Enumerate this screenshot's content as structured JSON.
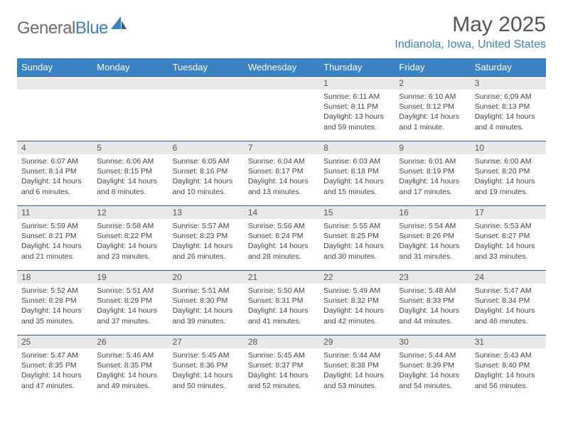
{
  "brand": {
    "part1": "General",
    "part2": "Blue"
  },
  "title": "May 2025",
  "location": "Indianola, Iowa, United States",
  "colors": {
    "accent": "#3b82c4",
    "header_text": "#ffffff",
    "daynum_bg": "#e8e8e8",
    "border": "#2f5f8f",
    "body_text": "#444444",
    "title_text": "#555555"
  },
  "dow": [
    "Sunday",
    "Monday",
    "Tuesday",
    "Wednesday",
    "Thursday",
    "Friday",
    "Saturday"
  ],
  "weeks": [
    [
      {
        "n": "",
        "lines": []
      },
      {
        "n": "",
        "lines": []
      },
      {
        "n": "",
        "lines": []
      },
      {
        "n": "",
        "lines": []
      },
      {
        "n": "1",
        "lines": [
          "Sunrise: 6:11 AM",
          "Sunset: 8:11 PM",
          "Daylight: 13 hours and 59 minutes."
        ]
      },
      {
        "n": "2",
        "lines": [
          "Sunrise: 6:10 AM",
          "Sunset: 8:12 PM",
          "Daylight: 14 hours and 1 minute."
        ]
      },
      {
        "n": "3",
        "lines": [
          "Sunrise: 6:09 AM",
          "Sunset: 8:13 PM",
          "Daylight: 14 hours and 4 minutes."
        ]
      }
    ],
    [
      {
        "n": "4",
        "lines": [
          "Sunrise: 6:07 AM",
          "Sunset: 8:14 PM",
          "Daylight: 14 hours and 6 minutes."
        ]
      },
      {
        "n": "5",
        "lines": [
          "Sunrise: 6:06 AM",
          "Sunset: 8:15 PM",
          "Daylight: 14 hours and 8 minutes."
        ]
      },
      {
        "n": "6",
        "lines": [
          "Sunrise: 6:05 AM",
          "Sunset: 8:16 PM",
          "Daylight: 14 hours and 10 minutes."
        ]
      },
      {
        "n": "7",
        "lines": [
          "Sunrise: 6:04 AM",
          "Sunset: 8:17 PM",
          "Daylight: 14 hours and 13 minutes."
        ]
      },
      {
        "n": "8",
        "lines": [
          "Sunrise: 6:03 AM",
          "Sunset: 8:18 PM",
          "Daylight: 14 hours and 15 minutes."
        ]
      },
      {
        "n": "9",
        "lines": [
          "Sunrise: 6:01 AM",
          "Sunset: 8:19 PM",
          "Daylight: 14 hours and 17 minutes."
        ]
      },
      {
        "n": "10",
        "lines": [
          "Sunrise: 6:00 AM",
          "Sunset: 8:20 PM",
          "Daylight: 14 hours and 19 minutes."
        ]
      }
    ],
    [
      {
        "n": "11",
        "lines": [
          "Sunrise: 5:59 AM",
          "Sunset: 8:21 PM",
          "Daylight: 14 hours and 21 minutes."
        ]
      },
      {
        "n": "12",
        "lines": [
          "Sunrise: 5:58 AM",
          "Sunset: 8:22 PM",
          "Daylight: 14 hours and 23 minutes."
        ]
      },
      {
        "n": "13",
        "lines": [
          "Sunrise: 5:57 AM",
          "Sunset: 8:23 PM",
          "Daylight: 14 hours and 26 minutes."
        ]
      },
      {
        "n": "14",
        "lines": [
          "Sunrise: 5:56 AM",
          "Sunset: 8:24 PM",
          "Daylight: 14 hours and 28 minutes."
        ]
      },
      {
        "n": "15",
        "lines": [
          "Sunrise: 5:55 AM",
          "Sunset: 8:25 PM",
          "Daylight: 14 hours and 30 minutes."
        ]
      },
      {
        "n": "16",
        "lines": [
          "Sunrise: 5:54 AM",
          "Sunset: 8:26 PM",
          "Daylight: 14 hours and 31 minutes."
        ]
      },
      {
        "n": "17",
        "lines": [
          "Sunrise: 5:53 AM",
          "Sunset: 8:27 PM",
          "Daylight: 14 hours and 33 minutes."
        ]
      }
    ],
    [
      {
        "n": "18",
        "lines": [
          "Sunrise: 5:52 AM",
          "Sunset: 8:28 PM",
          "Daylight: 14 hours and 35 minutes."
        ]
      },
      {
        "n": "19",
        "lines": [
          "Sunrise: 5:51 AM",
          "Sunset: 8:29 PM",
          "Daylight: 14 hours and 37 minutes."
        ]
      },
      {
        "n": "20",
        "lines": [
          "Sunrise: 5:51 AM",
          "Sunset: 8:30 PM",
          "Daylight: 14 hours and 39 minutes."
        ]
      },
      {
        "n": "21",
        "lines": [
          "Sunrise: 5:50 AM",
          "Sunset: 8:31 PM",
          "Daylight: 14 hours and 41 minutes."
        ]
      },
      {
        "n": "22",
        "lines": [
          "Sunrise: 5:49 AM",
          "Sunset: 8:32 PM",
          "Daylight: 14 hours and 42 minutes."
        ]
      },
      {
        "n": "23",
        "lines": [
          "Sunrise: 5:48 AM",
          "Sunset: 8:33 PM",
          "Daylight: 14 hours and 44 minutes."
        ]
      },
      {
        "n": "24",
        "lines": [
          "Sunrise: 5:47 AM",
          "Sunset: 8:34 PM",
          "Daylight: 14 hours and 46 minutes."
        ]
      }
    ],
    [
      {
        "n": "25",
        "lines": [
          "Sunrise: 5:47 AM",
          "Sunset: 8:35 PM",
          "Daylight: 14 hours and 47 minutes."
        ]
      },
      {
        "n": "26",
        "lines": [
          "Sunrise: 5:46 AM",
          "Sunset: 8:35 PM",
          "Daylight: 14 hours and 49 minutes."
        ]
      },
      {
        "n": "27",
        "lines": [
          "Sunrise: 5:45 AM",
          "Sunset: 8:36 PM",
          "Daylight: 14 hours and 50 minutes."
        ]
      },
      {
        "n": "28",
        "lines": [
          "Sunrise: 5:45 AM",
          "Sunset: 8:37 PM",
          "Daylight: 14 hours and 52 minutes."
        ]
      },
      {
        "n": "29",
        "lines": [
          "Sunrise: 5:44 AM",
          "Sunset: 8:38 PM",
          "Daylight: 14 hours and 53 minutes."
        ]
      },
      {
        "n": "30",
        "lines": [
          "Sunrise: 5:44 AM",
          "Sunset: 8:39 PM",
          "Daylight: 14 hours and 54 minutes."
        ]
      },
      {
        "n": "31",
        "lines": [
          "Sunrise: 5:43 AM",
          "Sunset: 8:40 PM",
          "Daylight: 14 hours and 56 minutes."
        ]
      }
    ]
  ]
}
